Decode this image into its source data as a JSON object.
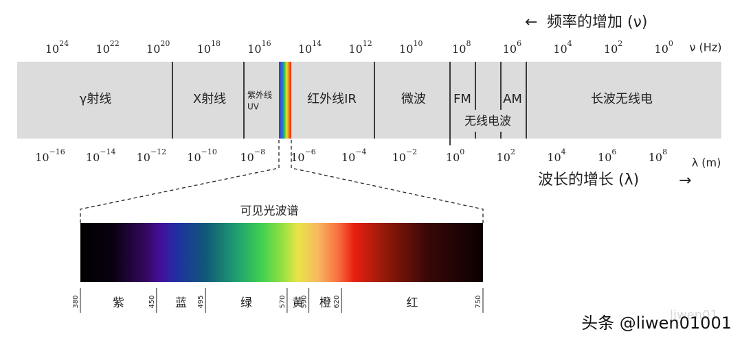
{
  "frequency_arrow": "←",
  "frequency_label": "频率的增加 (ν)",
  "frequency_ticks": [
    {
      "base": "10",
      "exp": "24"
    },
    {
      "base": "10",
      "exp": "22"
    },
    {
      "base": "10",
      "exp": "20"
    },
    {
      "base": "10",
      "exp": "18"
    },
    {
      "base": "10",
      "exp": "16"
    },
    {
      "base": "10",
      "exp": "14"
    },
    {
      "base": "10",
      "exp": "12"
    },
    {
      "base": "10",
      "exp": "10"
    },
    {
      "base": "10",
      "exp": "8"
    },
    {
      "base": "10",
      "exp": "6"
    },
    {
      "base": "10",
      "exp": "4"
    },
    {
      "base": "10",
      "exp": "2"
    },
    {
      "base": "10",
      "exp": "0"
    }
  ],
  "frequency_unit": "ν (Hz)",
  "regions": [
    {
      "lines": [
        "γ射线"
      ]
    },
    {
      "lines": [
        "X射线"
      ]
    },
    {
      "lines": [
        "紫外线",
        "UV"
      ]
    },
    {
      "lines": [
        "红外线IR"
      ]
    },
    {
      "lines": [
        "微波"
      ]
    },
    {
      "lines": [
        "FM"
      ]
    },
    {
      "lines": [
        "AM"
      ]
    },
    {
      "lines": [
        "长波无线电"
      ]
    }
  ],
  "radio_label": "无线电波",
  "wavelength_ticks": [
    {
      "base": "10",
      "exp": "−16"
    },
    {
      "base": "10",
      "exp": "−14"
    },
    {
      "base": "10",
      "exp": "−12"
    },
    {
      "base": "10",
      "exp": "−10"
    },
    {
      "base": "10",
      "exp": "−8"
    },
    {
      "base": "10",
      "exp": "−6"
    },
    {
      "base": "10",
      "exp": "−4"
    },
    {
      "base": "10",
      "exp": "−2"
    },
    {
      "base": "10",
      "exp": "0"
    },
    {
      "base": "10",
      "exp": "2"
    },
    {
      "base": "10",
      "exp": "4"
    },
    {
      "base": "10",
      "exp": "6"
    },
    {
      "base": "10",
      "exp": "8"
    }
  ],
  "wavelength_unit": "λ (m)",
  "wavelength_label": "波长的增长 (λ)",
  "wavelength_arrow": "→",
  "visible": {
    "title": "可见光波谱",
    "marks": [
      "380",
      "450",
      "495",
      "570",
      "590",
      "620",
      "750"
    ],
    "colors": [
      "紫",
      "蓝",
      "绿",
      "黄",
      "橙",
      "红"
    ]
  },
  "watermark_faint": "liwen01",
  "watermark": "头条 @liwen01001"
}
